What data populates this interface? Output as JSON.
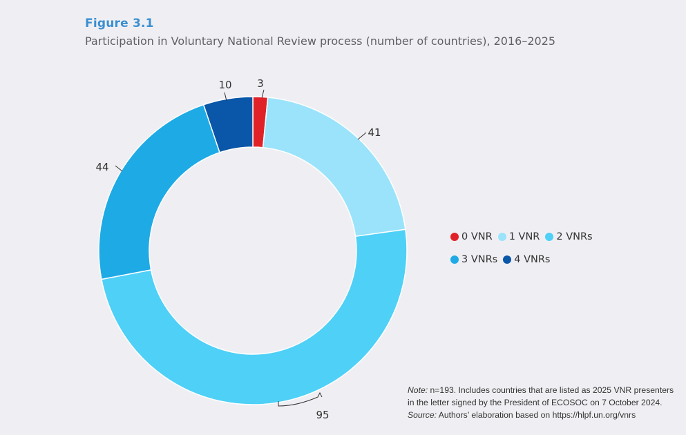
{
  "figure_label": "Figure 3.1",
  "title": "Participation in Voluntary National Review process (number of countries), 2016–2025",
  "colors": {
    "figure_label": "#3a8fd0",
    "0 VNR": "#e02228",
    "1 VNR": "#9ae3fb",
    "2 VNRs": "#4fd0f7",
    "3 VNRs": "#1eaae5",
    "4 VNRs": "#0a56a8"
  },
  "chart_data": {
    "type": "pie",
    "donut": true,
    "title": "Participation in Voluntary National Review process (number of countries), 2016–2025",
    "categories": [
      "0 VNR",
      "1 VNR",
      "2 VNRs",
      "3 VNRs",
      "4 VNRs"
    ],
    "values": [
      3,
      41,
      95,
      44,
      10
    ],
    "data_labels": [
      "3",
      "41",
      "95",
      "44",
      "10"
    ],
    "legend": {
      "placement": "right",
      "rows": [
        [
          "0 VNR",
          "1 VNR",
          "2 VNRs"
        ],
        [
          "3 VNRs",
          "4 VNRs"
        ]
      ]
    }
  },
  "note": {
    "note_label": "Note:",
    "note_text": " n=193. Includes countries that are listed as 2025 VNR presenters in the letter signed by the President of ECOSOC on 7 October 2024.",
    "source_label": "Source:",
    "source_text": " Authors’ elaboration based on https://hlpf.un.org/vnrs"
  }
}
